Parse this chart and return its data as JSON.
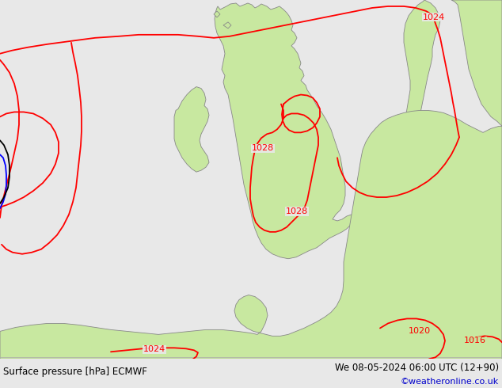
{
  "bottom_left_text": "Surface pressure [hPa] ECMWF",
  "bottom_right_text": "We 08-05-2024 06:00 UTC (12+90)",
  "bottom_credit": "©weatheronline.co.uk",
  "background_color": "#e8e8e8",
  "land_color": "#c8e8a0",
  "sea_color": "#e8e8e8",
  "isobar_color": "#ff0000",
  "isobar_color_blue": "#0000ff",
  "isobar_color_black": "#000000",
  "coast_color": "#888888",
  "text_color": "#000000",
  "credit_color": "#0000cc",
  "fig_width": 6.34,
  "fig_height": 4.9,
  "dpi": 100
}
